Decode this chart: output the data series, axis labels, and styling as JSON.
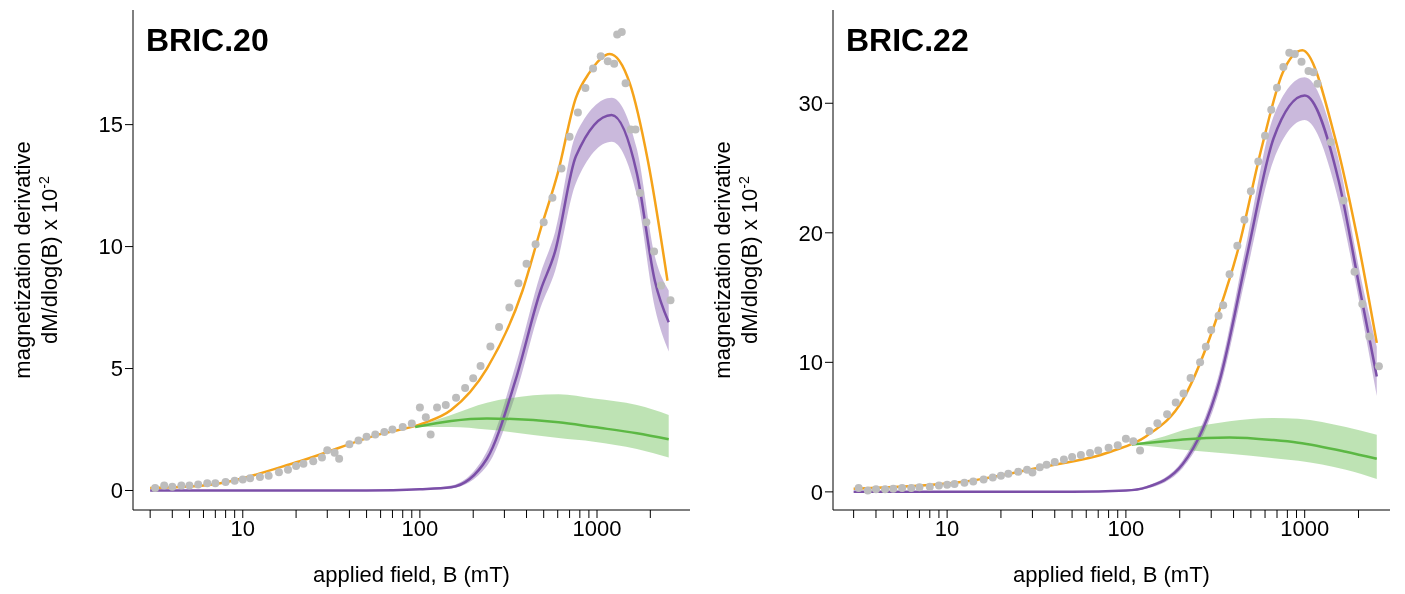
{
  "chart_data": [
    {
      "type": "line",
      "title": "BRIC.20",
      "xlabel": "applied field, B (mT)",
      "ylabel": "magnetization derivative\ndM/dlog(B) x 10$^{-2}$",
      "log": "x",
      "xlim": [
        2.4,
        3350
      ],
      "xticks": [
        {
          "value": 3,
          "label": null
        },
        {
          "value": 4,
          "label": null
        },
        {
          "value": 5,
          "label": null
        },
        {
          "value": 6,
          "label": null
        },
        {
          "value": 7,
          "label": null
        },
        {
          "value": 8,
          "label": null
        },
        {
          "value": 9,
          "label": null
        },
        10,
        {
          "value": 20,
          "label": null
        },
        {
          "value": 30,
          "label": null
        },
        {
          "value": 40,
          "label": null
        },
        {
          "value": 50,
          "label": null
        },
        {
          "value": 60,
          "label": null
        },
        {
          "value": 70,
          "label": null
        },
        {
          "value": 80,
          "label": null
        },
        {
          "value": 90,
          "label": null
        },
        100,
        {
          "value": 200,
          "label": null
        },
        {
          "value": 300,
          "label": null
        },
        {
          "value": 400,
          "label": null
        },
        {
          "value": 500,
          "label": null
        },
        {
          "value": 600,
          "label": null
        },
        {
          "value": 700,
          "label": null
        },
        {
          "value": 800,
          "label": null
        },
        {
          "value": 900,
          "label": null
        },
        1000,
        {
          "value": 2000,
          "label": null
        }
      ],
      "ylim": [
        -0.8,
        19.7
      ],
      "yticks": [
        0,
        5,
        10,
        15
      ],
      "series": [
        {
          "type": "scatter",
          "color": "#bdbdbd",
          "marker": "circle",
          "x": [
            3.2,
            3.6,
            4,
            4.5,
            5,
            5.6,
            6.3,
            7,
            8,
            9,
            10,
            11,
            12.5,
            14,
            16,
            18,
            20,
            22,
            25,
            28,
            30,
            33,
            35,
            40,
            45,
            50,
            56,
            63,
            70,
            80,
            90,
            100,
            108,
            115,
            125,
            140,
            160,
            180,
            200,
            220,
            250,
            280,
            320,
            360,
            400,
            450,
            500,
            560,
            630,
            700,
            780,
            860,
            950,
            1050,
            1150,
            1250,
            1300,
            1380,
            1450,
            1550,
            1650,
            1750,
            1900,
            2100,
            2300,
            2600
          ],
          "values": [
            0.1,
            0.2,
            0.15,
            0.2,
            0.2,
            0.25,
            0.3,
            0.3,
            0.35,
            0.4,
            0.45,
            0.5,
            0.55,
            0.6,
            0.75,
            0.85,
            1.0,
            1.1,
            1.2,
            1.35,
            1.65,
            1.55,
            1.3,
            1.9,
            2.05,
            2.2,
            2.3,
            2.4,
            2.5,
            2.6,
            2.75,
            3.4,
            3.0,
            2.3,
            3.4,
            3.5,
            3.8,
            4.2,
            4.6,
            5.1,
            5.9,
            6.7,
            7.5,
            8.5,
            9.3,
            10.1,
            11.0,
            12.0,
            13.2,
            14.5,
            15.5,
            16.5,
            17.3,
            17.8,
            17.6,
            17.5,
            18.7,
            18.8,
            16.7,
            14.8,
            14.8,
            12.2,
            11.0,
            9.8,
            8.4,
            7.8
          ]
        },
        {
          "color": "#f5a31a",
          "x": [
            3,
            6,
            21,
            59,
            104,
            150,
            239,
            380,
            480,
            600,
            760,
            900,
            1180,
            1530,
            1940,
            2500
          ],
          "values": [
            0.1,
            0.2,
            1.2,
            2.3,
            2.75,
            3.3,
            5.0,
            8.2,
            10.7,
            13.0,
            16.1,
            17.1,
            17.9,
            16.7,
            13.5,
            8.6
          ]
        },
        {
          "color": "#7b4fa8",
          "x": [
            3,
            50,
            100,
            150,
            239,
            346,
            480,
            580,
            760,
            1210,
            1680,
            2120,
            2540
          ],
          "values": [
            0,
            0,
            0.05,
            0.13,
            1.3,
            4.5,
            8.2,
            9.8,
            13.7,
            15.4,
            13.0,
            8.6,
            6.9
          ],
          "lower": [
            0,
            0,
            0.02,
            0.08,
            1.0,
            3.9,
            7.5,
            9.0,
            12.6,
            14.3,
            12.1,
            7.5,
            5.7
          ],
          "upper": [
            0,
            0,
            0.08,
            0.2,
            1.6,
            5.1,
            8.9,
            10.6,
            14.6,
            16.1,
            14.0,
            9.6,
            8.2
          ]
        },
        {
          "color": "#5cb844",
          "x": [
            94,
            150,
            239,
            607,
            960,
            1680,
            2540
          ],
          "values": [
            2.6,
            2.85,
            2.95,
            2.8,
            2.6,
            2.35,
            2.1
          ],
          "lower": [
            2.6,
            2.6,
            2.5,
            2.15,
            2.0,
            1.7,
            1.35
          ],
          "upper": [
            2.6,
            3.1,
            3.6,
            3.95,
            3.77,
            3.5,
            3.1
          ]
        }
      ]
    },
    {
      "type": "line",
      "title": "BRIC.22",
      "xlabel": "applied field, B (mT)",
      "ylabel": "magnetization derivative\ndM/dlog(B) x 10$^{-2}$",
      "log": "x",
      "xlim": [
        2.3,
        3000
      ],
      "xticks": [
        {
          "value": 3,
          "label": null
        },
        {
          "value": 4,
          "label": null
        },
        {
          "value": 5,
          "label": null
        },
        {
          "value": 6,
          "label": null
        },
        {
          "value": 7,
          "label": null
        },
        {
          "value": 8,
          "label": null
        },
        {
          "value": 9,
          "label": null
        },
        10,
        {
          "value": 20,
          "label": null
        },
        {
          "value": 30,
          "label": null
        },
        {
          "value": 40,
          "label": null
        },
        {
          "value": 50,
          "label": null
        },
        {
          "value": 60,
          "label": null
        },
        {
          "value": 70,
          "label": null
        },
        {
          "value": 80,
          "label": null
        },
        {
          "value": 90,
          "label": null
        },
        100,
        {
          "value": 200,
          "label": null
        },
        {
          "value": 300,
          "label": null
        },
        {
          "value": 400,
          "label": null
        },
        {
          "value": 500,
          "label": null
        },
        {
          "value": 600,
          "label": null
        },
        {
          "value": 700,
          "label": null
        },
        {
          "value": 800,
          "label": null
        },
        {
          "value": 900,
          "label": null
        },
        1000,
        {
          "value": 2000,
          "label": null
        }
      ],
      "ylim": [
        -1.4,
        37.2
      ],
      "yticks": [
        0,
        10,
        20,
        30
      ],
      "series": [
        {
          "type": "scatter",
          "color": "#bdbdbd",
          "marker": "circle",
          "x": [
            3.2,
            3.6,
            4,
            4.5,
            5,
            5.6,
            6.3,
            7,
            8,
            9,
            10,
            11,
            12.5,
            14,
            16,
            18,
            20,
            22,
            25,
            28,
            30,
            33,
            36,
            40,
            45,
            50,
            56,
            63,
            70,
            80,
            90,
            100,
            110,
            120,
            135,
            150,
            170,
            190,
            210,
            230,
            260,
            280,
            300,
            330,
            350,
            380,
            420,
            460,
            500,
            550,
            600,
            650,
            700,
            760,
            820,
            880,
            960,
            1050,
            1120,
            1180,
            1400,
            1650,
            1900,
            2100,
            2300,
            2600
          ],
          "values": [
            0.3,
            0.1,
            0.2,
            0.2,
            0.25,
            0.3,
            0.3,
            0.35,
            0.4,
            0.5,
            0.55,
            0.6,
            0.7,
            0.8,
            0.95,
            1.1,
            1.25,
            1.4,
            1.55,
            1.7,
            1.5,
            1.9,
            2.1,
            2.3,
            2.5,
            2.7,
            2.85,
            3.0,
            3.2,
            3.4,
            3.6,
            4.1,
            3.9,
            3.2,
            4.7,
            5.3,
            6.0,
            6.9,
            7.6,
            8.8,
            10.0,
            11.2,
            12.5,
            13.6,
            14.4,
            16.8,
            19.0,
            21.0,
            23.2,
            25.5,
            27.5,
            29.5,
            31.2,
            32.8,
            33.9,
            33.8,
            33.2,
            32.5,
            32.4,
            31.5,
            27.0,
            22.5,
            17.0,
            14.5,
            12.0,
            9.7
          ]
        },
        {
          "color": "#f5a31a",
          "x": [
            3,
            12.6,
            32,
            82,
            130,
            208,
            333,
            420,
            580,
            750,
            970,
            1480,
            1950,
            2530
          ],
          "values": [
            0.25,
            0.8,
            1.85,
            3.1,
            4.3,
            7.1,
            14.0,
            18.5,
            26.8,
            32.3,
            34.1,
            27.3,
            19.9,
            11.5
          ]
        },
        {
          "color": "#7b4fa8",
          "x": [
            3,
            50,
            100,
            130,
            208,
            333,
            480,
            670,
            1000,
            1550,
            2030,
            2530
          ],
          "values": [
            0,
            0,
            0.1,
            0.35,
            2.15,
            8.5,
            18.5,
            27.3,
            30.6,
            24.0,
            15.7,
            8.9
          ],
          "lower": [
            0,
            0,
            0.05,
            0.25,
            1.85,
            7.8,
            17.3,
            25.6,
            28.7,
            22.4,
            14.5,
            7.4
          ],
          "upper": [
            0,
            0,
            0.15,
            0.45,
            2.45,
            9.2,
            19.7,
            29.0,
            32.0,
            25.6,
            17.0,
            11.2
          ]
        },
        {
          "color": "#5cb844",
          "x": [
            108,
            165,
            208,
            380,
            670,
            920,
            1700,
            2530
          ],
          "values": [
            3.65,
            3.9,
            4.05,
            4.2,
            4.0,
            3.8,
            3.1,
            2.55
          ],
          "lower": [
            3.65,
            3.4,
            3.25,
            2.95,
            2.6,
            2.4,
            1.7,
            1.0
          ],
          "upper": [
            3.65,
            4.3,
            4.75,
            5.45,
            5.7,
            5.65,
            5.0,
            4.4
          ]
        }
      ]
    }
  ]
}
